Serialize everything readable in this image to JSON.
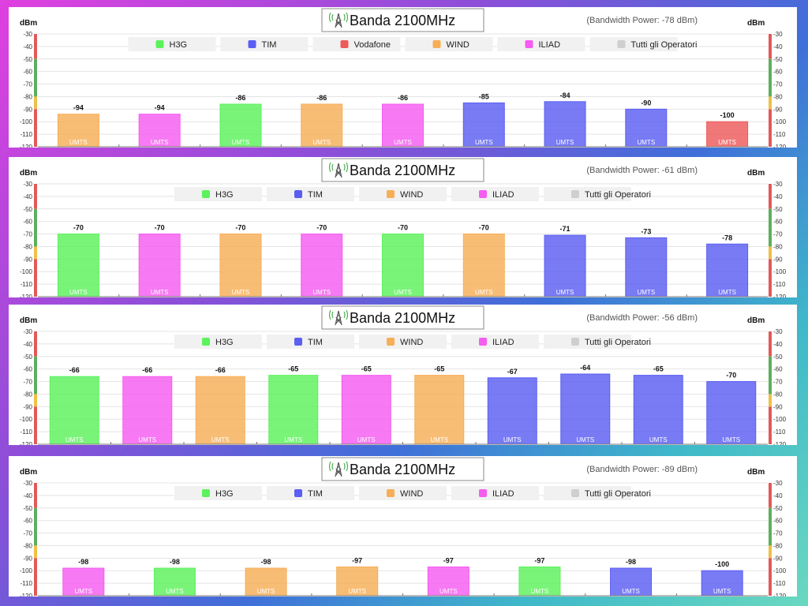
{
  "colors": {
    "H3G": "#5cf25c",
    "TIM": "#5a5ef2",
    "Vodafone": "#ee5a5a",
    "WIND": "#f7ae57",
    "ILIAD": "#f55cf0",
    "Tutti gli Operatori": "#cfcfcf"
  },
  "chart_data": [
    {
      "type": "bar",
      "title": "Banda 2100MHz",
      "subtitle": "(Bandwidth Power: -78 dBm)",
      "ylabel": "dBm",
      "ylim": [
        -120,
        -30
      ],
      "yticks": [
        -30,
        -40,
        -50,
        -60,
        -70,
        -80,
        -90,
        -100,
        -110,
        -120
      ],
      "legend": [
        "H3G",
        "TIM",
        "Vodafone",
        "WIND",
        "ILIAD",
        "Tutti gli Operatori"
      ],
      "bars": [
        {
          "operator": "WIND",
          "value": -94,
          "value_label": "-94",
          "tech": "UMTS"
        },
        {
          "operator": "ILIAD",
          "value": -94,
          "value_label": "-94",
          "tech": "UMTS"
        },
        {
          "operator": "H3G",
          "value": -86,
          "value_label": "-86",
          "tech": "UMTS"
        },
        {
          "operator": "WIND",
          "value": -86,
          "value_label": "-86",
          "tech": "UMTS"
        },
        {
          "operator": "ILIAD",
          "value": -86,
          "value_label": "-86",
          "tech": "UMTS"
        },
        {
          "operator": "TIM",
          "value": -85,
          "value_label": "-85",
          "tech": "UMTS"
        },
        {
          "operator": "TIM",
          "value": -84,
          "value_label": "-84",
          "tech": "UMTS"
        },
        {
          "operator": "TIM",
          "value": -90,
          "value_label": "-90",
          "tech": "UMTS"
        },
        {
          "operator": "Vodafone",
          "value": -100,
          "value_label": "-100",
          "tech": "UMTS"
        }
      ]
    },
    {
      "type": "bar",
      "title": "Banda 2100MHz",
      "subtitle": "(Bandwidth Power: -61 dBm)",
      "ylabel": "dBm",
      "ylim": [
        -120,
        -30
      ],
      "yticks": [
        -30,
        -40,
        -50,
        -60,
        -70,
        -80,
        -90,
        -100,
        -110,
        -120
      ],
      "legend": [
        "H3G",
        "TIM",
        "WIND",
        "ILIAD",
        "Tutti gli Operatori"
      ],
      "bars": [
        {
          "operator": "H3G",
          "value": -70,
          "value_label": "-70",
          "tech": "UMTS"
        },
        {
          "operator": "ILIAD",
          "value": -70,
          "value_label": "-70",
          "tech": "UMTS"
        },
        {
          "operator": "WIND",
          "value": -70,
          "value_label": "-70",
          "tech": "UMTS"
        },
        {
          "operator": "ILIAD",
          "value": -70,
          "value_label": "-70",
          "tech": "UMTS"
        },
        {
          "operator": "H3G",
          "value": -70,
          "value_label": "-70",
          "tech": "UMTS"
        },
        {
          "operator": "WIND",
          "value": -70,
          "value_label": "-70",
          "tech": "UMTS"
        },
        {
          "operator": "TIM",
          "value": -71,
          "value_label": "-71",
          "tech": "UMTS"
        },
        {
          "operator": "TIM",
          "value": -73,
          "value_label": "-73",
          "tech": "UMTS"
        },
        {
          "operator": "TIM",
          "value": -78,
          "value_label": "-78",
          "tech": "UMTS"
        }
      ]
    },
    {
      "type": "bar",
      "title": "Banda 2100MHz",
      "subtitle": "(Bandwidth Power: -56 dBm)",
      "ylabel": "dBm",
      "ylim": [
        -120,
        -30
      ],
      "yticks": [
        -30,
        -40,
        -50,
        -60,
        -70,
        -80,
        -90,
        -100,
        -110,
        -120
      ],
      "legend": [
        "H3G",
        "TIM",
        "WIND",
        "ILIAD",
        "Tutti gli Operatori"
      ],
      "bars": [
        {
          "operator": "H3G",
          "value": -66,
          "value_label": "-66",
          "tech": "UMTS"
        },
        {
          "operator": "ILIAD",
          "value": -66,
          "value_label": "-66",
          "tech": "UMTS"
        },
        {
          "operator": "WIND",
          "value": -66,
          "value_label": "-66",
          "tech": "UMTS"
        },
        {
          "operator": "H3G",
          "value": -65,
          "value_label": "-65",
          "tech": "UMTS"
        },
        {
          "operator": "ILIAD",
          "value": -65,
          "value_label": "-65",
          "tech": "UMTS"
        },
        {
          "operator": "WIND",
          "value": -65,
          "value_label": "-65",
          "tech": "UMTS"
        },
        {
          "operator": "TIM",
          "value": -67,
          "value_label": "-67",
          "tech": "UMTS"
        },
        {
          "operator": "TIM",
          "value": -64,
          "value_label": "-64",
          "tech": "UMTS"
        },
        {
          "operator": "TIM",
          "value": -65,
          "value_label": "-65",
          "tech": "UMTS"
        },
        {
          "operator": "TIM",
          "value": -70,
          "value_label": "-70",
          "tech": "UMTS"
        }
      ]
    },
    {
      "type": "bar",
      "title": "Banda 2100MHz",
      "subtitle": "(Bandwidth Power: -89 dBm)",
      "ylabel": "dBm",
      "ylim": [
        -120,
        -30
      ],
      "yticks": [
        -30,
        -40,
        -50,
        -60,
        -70,
        -80,
        -90,
        -100,
        -110,
        -120
      ],
      "legend": [
        "H3G",
        "TIM",
        "WIND",
        "ILIAD",
        "Tutti gli Operatori"
      ],
      "bars": [
        {
          "operator": "ILIAD",
          "value": -98,
          "value_label": "-98",
          "tech": "UMTS"
        },
        {
          "operator": "H3G",
          "value": -98,
          "value_label": "-98",
          "tech": "UMTS"
        },
        {
          "operator": "WIND",
          "value": -98,
          "value_label": "-98",
          "tech": "UMTS"
        },
        {
          "operator": "WIND",
          "value": -97,
          "value_label": "-97",
          "tech": "UMTS"
        },
        {
          "operator": "ILIAD",
          "value": -97,
          "value_label": "-97",
          "tech": "UMTS"
        },
        {
          "operator": "H3G",
          "value": -97,
          "value_label": "-97",
          "tech": "UMTS"
        },
        {
          "operator": "TIM",
          "value": -98,
          "value_label": "-98",
          "tech": "UMTS"
        },
        {
          "operator": "TIM",
          "value": -100,
          "value_label": "-100",
          "tech": "UMTS"
        }
      ]
    }
  ]
}
